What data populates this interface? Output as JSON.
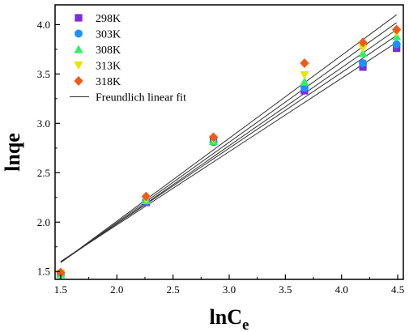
{
  "chart_data": {
    "type": "scatter",
    "xlabel": "lnC",
    "xlabel_sub": "e",
    "ylabel": "lnqe",
    "xlim": [
      1.45,
      4.55
    ],
    "ylim": [
      1.42,
      4.2
    ],
    "x_ticks": [
      1.5,
      2.0,
      2.5,
      3.0,
      3.5,
      4.0,
      4.5
    ],
    "y_ticks": [
      1.5,
      2.0,
      2.5,
      3.0,
      3.5,
      4.0
    ],
    "x_tick_labels": [
      "1.5",
      "2.0",
      "2.5",
      "3.0",
      "3.5",
      "4.0",
      "4.5"
    ],
    "y_tick_labels": [
      "1.5",
      "2.0",
      "2.5",
      "3.0",
      "3.5",
      "4.0"
    ],
    "legend_position": "top-left",
    "x": [
      1.5,
      2.26,
      2.86,
      3.67,
      4.19,
      4.49
    ],
    "series": [
      {
        "name": "298K",
        "marker": "square",
        "color": "#7b2be2",
        "values": [
          1.47,
          2.2,
          2.82,
          3.33,
          3.57,
          3.76
        ]
      },
      {
        "name": "303K",
        "marker": "circle",
        "color": "#1e90ff",
        "values": [
          1.47,
          2.21,
          2.81,
          3.36,
          3.61,
          3.8
        ]
      },
      {
        "name": "308K",
        "marker": "triangle-up",
        "color": "#33ee66",
        "values": [
          1.47,
          2.22,
          2.82,
          3.42,
          3.71,
          3.88
        ]
      },
      {
        "name": "313K",
        "marker": "triangle-down",
        "color": "#e6e600",
        "values": [
          1.48,
          2.23,
          2.84,
          3.49,
          3.76,
          3.92
        ]
      },
      {
        "name": "318K",
        "marker": "diamond",
        "color": "#f05a1a",
        "values": [
          1.49,
          2.26,
          2.86,
          3.61,
          3.82,
          3.95
        ]
      }
    ],
    "fit": {
      "name": "Freundlich linear fit",
      "color": "#333333",
      "lines": [
        {
          "x": [
            1.5,
            4.49
          ],
          "y": [
            1.6,
            3.82
          ]
        },
        {
          "x": [
            1.5,
            4.49
          ],
          "y": [
            1.6,
            3.89
          ]
        },
        {
          "x": [
            1.5,
            4.49
          ],
          "y": [
            1.59,
            3.95
          ]
        },
        {
          "x": [
            1.5,
            4.49
          ],
          "y": [
            1.59,
            4.02
          ]
        },
        {
          "x": [
            1.5,
            4.49
          ],
          "y": [
            1.59,
            4.1
          ]
        }
      ]
    }
  }
}
